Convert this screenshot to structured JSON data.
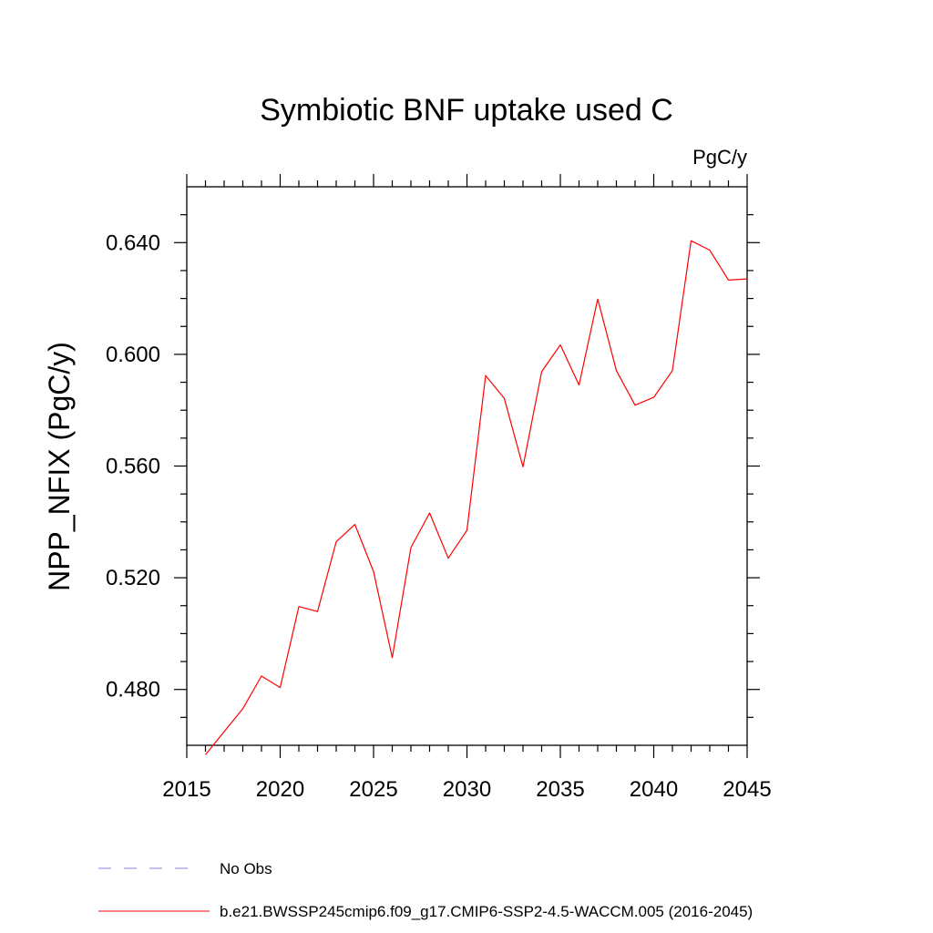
{
  "chart_data": {
    "type": "line",
    "title": "Symbiotic BNF uptake used C",
    "units": "PgC/y",
    "xlabel": "",
    "ylabel": "NPP_NFIX  (PgC/y)",
    "xlim": [
      2015,
      2045
    ],
    "ylim": [
      0.46,
      0.66
    ],
    "x_ticks": [
      2015,
      2020,
      2025,
      2030,
      2035,
      2040,
      2045
    ],
    "x_tick_labels": [
      "2015",
      "2020",
      "2025",
      "2030",
      "2035",
      "2040",
      "2045"
    ],
    "y_ticks": [
      0.48,
      0.52,
      0.56,
      0.6,
      0.64
    ],
    "y_tick_labels": [
      "0.480",
      "0.520",
      "0.560",
      "0.600",
      "0.640"
    ],
    "x_minor_step": 1,
    "y_minor_step": 0.01,
    "grid": false,
    "legend_position": "bottom-left, below plot",
    "series": [
      {
        "name": "b.e21.BWSSP245cmip6.f09_g17.CMIP6-SSP2-4.5-WACCM.005 (2016-2045)",
        "color": "#ff0000",
        "dash": "solid",
        "x": [
          2016,
          2017,
          2018,
          2019,
          2020,
          2021,
          2022,
          2023,
          2024,
          2025,
          2026,
          2027,
          2028,
          2029,
          2030,
          2031,
          2032,
          2033,
          2034,
          2035,
          2036,
          2037,
          2038,
          2039,
          2040,
          2041,
          2042,
          2043,
          2044,
          2045
        ],
        "values": [
          0.4566,
          0.4649,
          0.4731,
          0.4848,
          0.4807,
          0.5097,
          0.5079,
          0.5329,
          0.5391,
          0.5222,
          0.4914,
          0.5308,
          0.5432,
          0.527,
          0.537,
          0.5924,
          0.5842,
          0.5597,
          0.5938,
          0.6034,
          0.589,
          0.6198,
          0.5942,
          0.5818,
          0.5846,
          0.5942,
          0.6407,
          0.6373,
          0.6266,
          0.627
        ]
      }
    ],
    "legend": [
      {
        "label": "No Obs",
        "color": "#8c7fd8",
        "dash": "dashed"
      },
      {
        "label": "b.e21.BWSSP245cmip6.f09_g17.CMIP6-SSP2-4.5-WACCM.005 (2016-2045)",
        "color": "#ff0000",
        "dash": "solid"
      }
    ]
  }
}
